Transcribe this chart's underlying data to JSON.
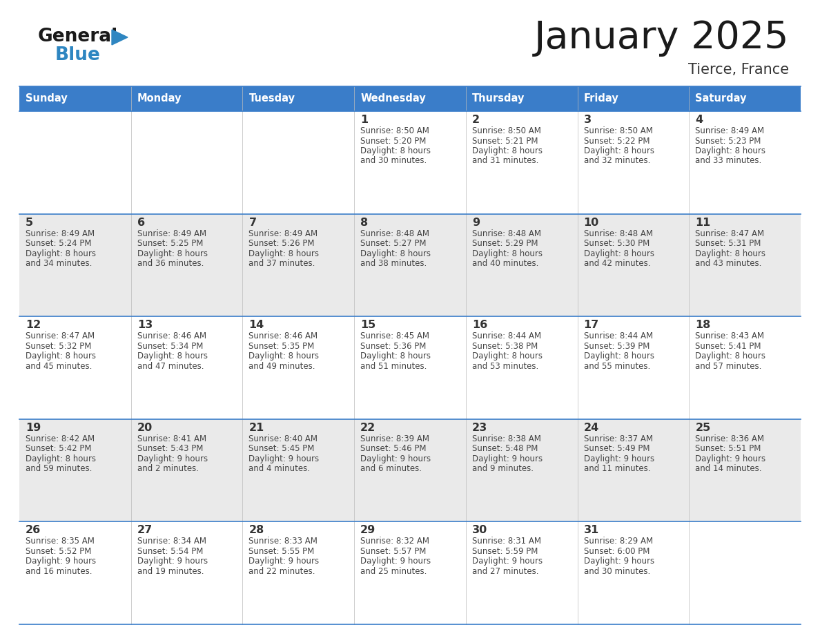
{
  "title": "January 2025",
  "subtitle": "Tierce, France",
  "days_of_week": [
    "Sunday",
    "Monday",
    "Tuesday",
    "Wednesday",
    "Thursday",
    "Friday",
    "Saturday"
  ],
  "header_bg": "#3A7DC9",
  "header_text": "#FFFFFF",
  "row_bg_odd": "#EAEAEA",
  "row_bg_even": "#FFFFFF",
  "day_num_color": "#333333",
  "text_color": "#444444",
  "line_color": "#3A7DC9",
  "calendar": [
    [
      {
        "day": "",
        "sunrise": "",
        "sunset": "",
        "daylight": ""
      },
      {
        "day": "",
        "sunrise": "",
        "sunset": "",
        "daylight": ""
      },
      {
        "day": "",
        "sunrise": "",
        "sunset": "",
        "daylight": ""
      },
      {
        "day": "1",
        "sunrise": "8:50 AM",
        "sunset": "5:20 PM",
        "daylight": "8 hours\nand 30 minutes."
      },
      {
        "day": "2",
        "sunrise": "8:50 AM",
        "sunset": "5:21 PM",
        "daylight": "8 hours\nand 31 minutes."
      },
      {
        "day": "3",
        "sunrise": "8:50 AM",
        "sunset": "5:22 PM",
        "daylight": "8 hours\nand 32 minutes."
      },
      {
        "day": "4",
        "sunrise": "8:49 AM",
        "sunset": "5:23 PM",
        "daylight": "8 hours\nand 33 minutes."
      }
    ],
    [
      {
        "day": "5",
        "sunrise": "8:49 AM",
        "sunset": "5:24 PM",
        "daylight": "8 hours\nand 34 minutes."
      },
      {
        "day": "6",
        "sunrise": "8:49 AM",
        "sunset": "5:25 PM",
        "daylight": "8 hours\nand 36 minutes."
      },
      {
        "day": "7",
        "sunrise": "8:49 AM",
        "sunset": "5:26 PM",
        "daylight": "8 hours\nand 37 minutes."
      },
      {
        "day": "8",
        "sunrise": "8:48 AM",
        "sunset": "5:27 PM",
        "daylight": "8 hours\nand 38 minutes."
      },
      {
        "day": "9",
        "sunrise": "8:48 AM",
        "sunset": "5:29 PM",
        "daylight": "8 hours\nand 40 minutes."
      },
      {
        "day": "10",
        "sunrise": "8:48 AM",
        "sunset": "5:30 PM",
        "daylight": "8 hours\nand 42 minutes."
      },
      {
        "day": "11",
        "sunrise": "8:47 AM",
        "sunset": "5:31 PM",
        "daylight": "8 hours\nand 43 minutes."
      }
    ],
    [
      {
        "day": "12",
        "sunrise": "8:47 AM",
        "sunset": "5:32 PM",
        "daylight": "8 hours\nand 45 minutes."
      },
      {
        "day": "13",
        "sunrise": "8:46 AM",
        "sunset": "5:34 PM",
        "daylight": "8 hours\nand 47 minutes."
      },
      {
        "day": "14",
        "sunrise": "8:46 AM",
        "sunset": "5:35 PM",
        "daylight": "8 hours\nand 49 minutes."
      },
      {
        "day": "15",
        "sunrise": "8:45 AM",
        "sunset": "5:36 PM",
        "daylight": "8 hours\nand 51 minutes."
      },
      {
        "day": "16",
        "sunrise": "8:44 AM",
        "sunset": "5:38 PM",
        "daylight": "8 hours\nand 53 minutes."
      },
      {
        "day": "17",
        "sunrise": "8:44 AM",
        "sunset": "5:39 PM",
        "daylight": "8 hours\nand 55 minutes."
      },
      {
        "day": "18",
        "sunrise": "8:43 AM",
        "sunset": "5:41 PM",
        "daylight": "8 hours\nand 57 minutes."
      }
    ],
    [
      {
        "day": "19",
        "sunrise": "8:42 AM",
        "sunset": "5:42 PM",
        "daylight": "8 hours\nand 59 minutes."
      },
      {
        "day": "20",
        "sunrise": "8:41 AM",
        "sunset": "5:43 PM",
        "daylight": "9 hours\nand 2 minutes."
      },
      {
        "day": "21",
        "sunrise": "8:40 AM",
        "sunset": "5:45 PM",
        "daylight": "9 hours\nand 4 minutes."
      },
      {
        "day": "22",
        "sunrise": "8:39 AM",
        "sunset": "5:46 PM",
        "daylight": "9 hours\nand 6 minutes."
      },
      {
        "day": "23",
        "sunrise": "8:38 AM",
        "sunset": "5:48 PM",
        "daylight": "9 hours\nand 9 minutes."
      },
      {
        "day": "24",
        "sunrise": "8:37 AM",
        "sunset": "5:49 PM",
        "daylight": "9 hours\nand 11 minutes."
      },
      {
        "day": "25",
        "sunrise": "8:36 AM",
        "sunset": "5:51 PM",
        "daylight": "9 hours\nand 14 minutes."
      }
    ],
    [
      {
        "day": "26",
        "sunrise": "8:35 AM",
        "sunset": "5:52 PM",
        "daylight": "9 hours\nand 16 minutes."
      },
      {
        "day": "27",
        "sunrise": "8:34 AM",
        "sunset": "5:54 PM",
        "daylight": "9 hours\nand 19 minutes."
      },
      {
        "day": "28",
        "sunrise": "8:33 AM",
        "sunset": "5:55 PM",
        "daylight": "9 hours\nand 22 minutes."
      },
      {
        "day": "29",
        "sunrise": "8:32 AM",
        "sunset": "5:57 PM",
        "daylight": "9 hours\nand 25 minutes."
      },
      {
        "day": "30",
        "sunrise": "8:31 AM",
        "sunset": "5:59 PM",
        "daylight": "9 hours\nand 27 minutes."
      },
      {
        "day": "31",
        "sunrise": "8:29 AM",
        "sunset": "6:00 PM",
        "daylight": "9 hours\nand 30 minutes."
      },
      {
        "day": "",
        "sunrise": "",
        "sunset": "",
        "daylight": ""
      }
    ]
  ],
  "logo_general_color": "#1a1a1a",
  "logo_blue_color": "#2E86C1",
  "logo_triangle_color": "#2E86C1",
  "fig_width": 11.88,
  "fig_height": 9.18,
  "dpi": 100
}
